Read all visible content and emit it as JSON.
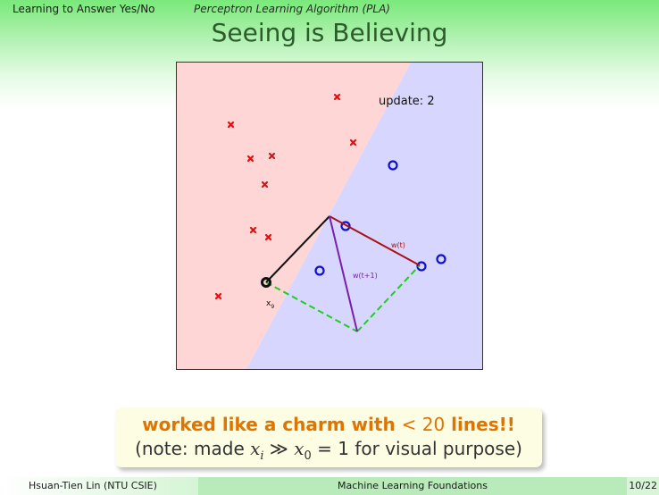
{
  "header": {
    "left": "Learning to Answer Yes/No",
    "section": "Perceptron Learning Algorithm (PLA)",
    "title": "Seeing is Believing"
  },
  "plot": {
    "update_label": "update: 2",
    "w_t_label": "w(t)",
    "w_t1_label": "w(t+1)",
    "x_label": "x",
    "x_subscript": "9",
    "colors": {
      "negative_region": "#ffd6d6",
      "positive_region": "#d6d6ff",
      "cross": "#dd1111",
      "circle": "#1111cc",
      "w_t": "#aa1111",
      "w_t1": "#7a1fa8",
      "x_vector": "#111111",
      "dashed": "#22cc22"
    },
    "icons": [
      "cross-marker",
      "circle-marker"
    ]
  },
  "callout": {
    "line1_prefix": "worked like a charm with ",
    "line1_math": "< 20",
    "line1_suffix": " lines!!",
    "line2_prefix": "(note: made ",
    "line2_xi": "x",
    "line2_i": "i",
    "line2_mid": " ≫ ",
    "line2_x0": "x",
    "line2_0": "0",
    "line2_suffix": " = 1 for visual purpose)"
  },
  "footer": {
    "author": "Hsuan-Tien Lin  (NTU CSIE)",
    "course": "Machine Learning Foundations",
    "page": "10/22"
  }
}
